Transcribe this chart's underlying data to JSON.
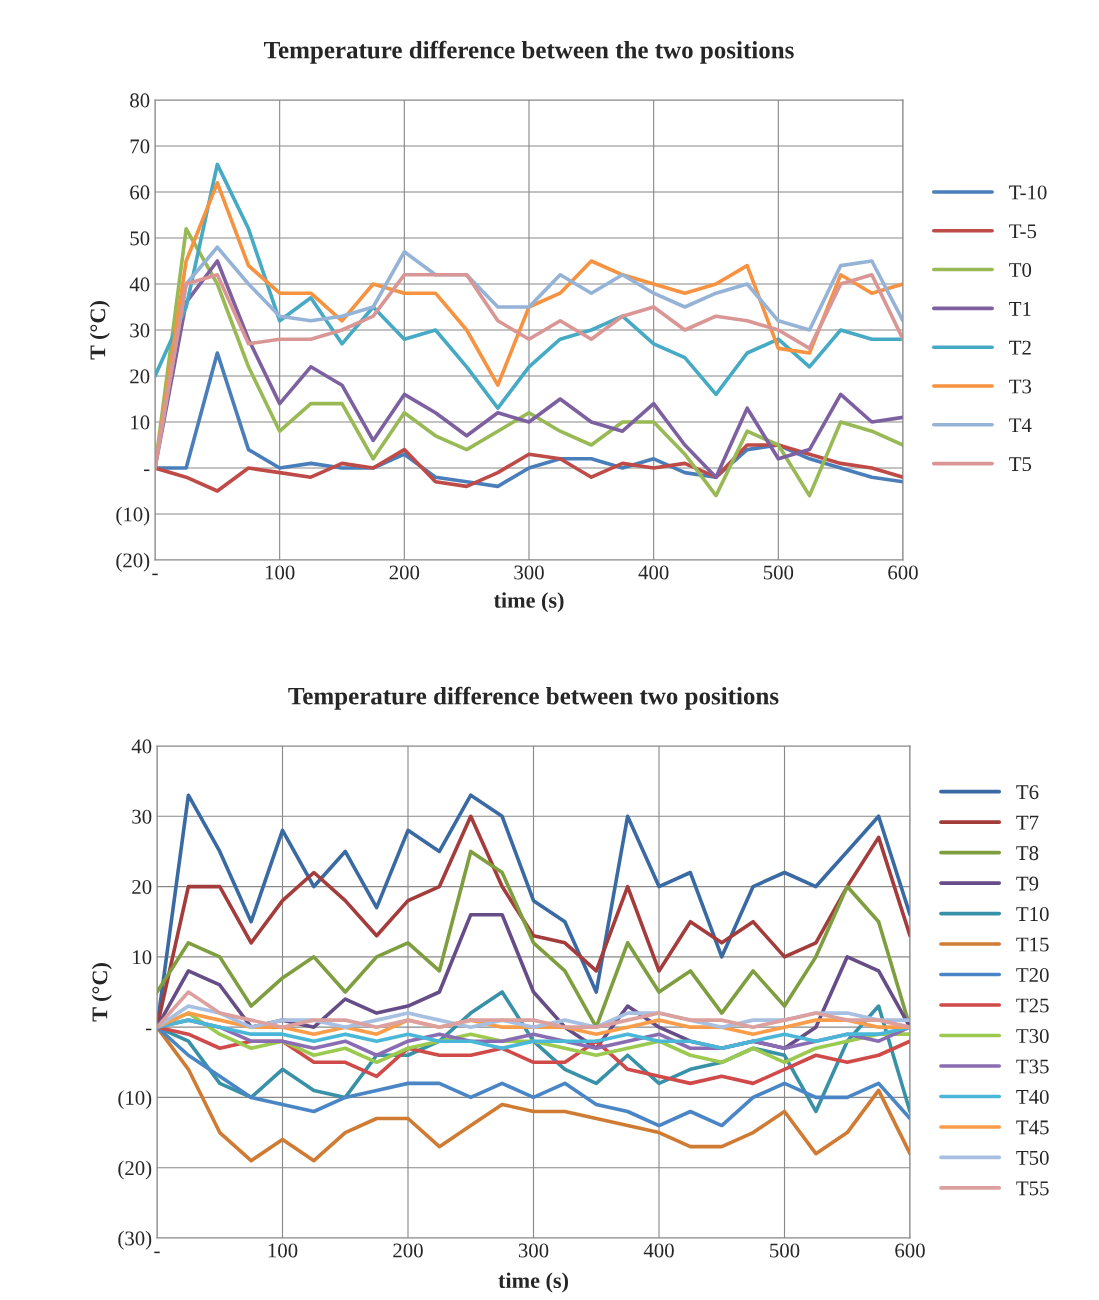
{
  "chart_data": [
    {
      "type": "line",
      "title": "Temperature difference between the two positions",
      "xlabel": "time (s)",
      "ylabel": "T (°C)",
      "x": [
        0,
        25,
        50,
        75,
        100,
        125,
        150,
        175,
        200,
        225,
        250,
        275,
        300,
        325,
        350,
        375,
        400,
        425,
        450,
        475,
        500,
        525,
        550,
        575,
        600
      ],
      "xlim": [
        0,
        600
      ],
      "xticks": [
        {
          "value": 0,
          "label": "-"
        },
        100,
        200,
        300,
        400,
        500,
        600
      ],
      "ylim": [
        -20,
        80
      ],
      "yticks": [
        {
          "value": -20,
          "label": "(20)"
        },
        {
          "value": -10,
          "label": "(10)"
        },
        {
          "value": 0,
          "label": "-"
        },
        10,
        20,
        30,
        40,
        50,
        60,
        70,
        80
      ],
      "grid": true,
      "legend": "right",
      "series": [
        {
          "name": "T-10",
          "color": "#4a7ebb",
          "values": [
            0,
            0,
            25,
            4,
            0,
            1,
            0,
            0,
            3,
            -2,
            -3,
            -4,
            0,
            2,
            2,
            0,
            2,
            -1,
            -2,
            4,
            5,
            2,
            0,
            -2,
            -3
          ]
        },
        {
          "name": "T-5",
          "color": "#be4b48",
          "values": [
            0,
            -2,
            -5,
            0,
            -1,
            -2,
            1,
            0,
            4,
            -3,
            -4,
            -1,
            3,
            2,
            -2,
            1,
            0,
            1,
            -2,
            5,
            5,
            3,
            1,
            0,
            -2
          ]
        },
        {
          "name": "T0",
          "color": "#98b954",
          "values": [
            0,
            52,
            40,
            22,
            8,
            14,
            14,
            2,
            12,
            7,
            4,
            8,
            12,
            8,
            5,
            10,
            10,
            3,
            -6,
            8,
            5,
            -6,
            10,
            8,
            5
          ]
        },
        {
          "name": "T1",
          "color": "#7d60a0",
          "values": [
            0,
            36,
            45,
            28,
            14,
            22,
            18,
            6,
            16,
            12,
            7,
            12,
            10,
            15,
            10,
            8,
            14,
            5,
            -2,
            13,
            2,
            4,
            16,
            10,
            11
          ]
        },
        {
          "name": "T2",
          "color": "#46aac5",
          "values": [
            20,
            35,
            66,
            52,
            32,
            37,
            27,
            35,
            28,
            30,
            22,
            13,
            22,
            28,
            30,
            33,
            27,
            24,
            16,
            25,
            28,
            22,
            30,
            28,
            28
          ]
        },
        {
          "name": "T3",
          "color": "#f69240",
          "values": [
            0,
            45,
            62,
            44,
            38,
            38,
            32,
            40,
            38,
            38,
            30,
            18,
            35,
            38,
            45,
            42,
            40,
            38,
            40,
            44,
            26,
            25,
            42,
            38,
            40
          ]
        },
        {
          "name": "T4",
          "color": "#95b3d7",
          "values": [
            0,
            40,
            48,
            40,
            33,
            32,
            33,
            35,
            47,
            42,
            42,
            35,
            35,
            42,
            38,
            42,
            38,
            35,
            38,
            40,
            32,
            30,
            44,
            45,
            32
          ]
        },
        {
          "name": "T5",
          "color": "#d99694",
          "values": [
            0,
            40,
            42,
            27,
            28,
            28,
            30,
            33,
            42,
            42,
            42,
            32,
            28,
            32,
            28,
            33,
            35,
            30,
            33,
            32,
            30,
            26,
            40,
            42,
            28
          ]
        }
      ]
    },
    {
      "type": "line",
      "title": "Temperature difference between two positions",
      "xlabel": "time (s)",
      "ylabel": "T (°C)",
      "x": [
        0,
        25,
        50,
        75,
        100,
        125,
        150,
        175,
        200,
        225,
        250,
        275,
        300,
        325,
        350,
        375,
        400,
        425,
        450,
        475,
        500,
        525,
        550,
        575,
        600
      ],
      "xlim": [
        0,
        600
      ],
      "xticks": [
        {
          "value": 0,
          "label": "-"
        },
        100,
        200,
        300,
        400,
        500,
        600
      ],
      "ylim": [
        -30,
        40
      ],
      "yticks": [
        {
          "value": -30,
          "label": "(30)"
        },
        {
          "value": -20,
          "label": "(20)"
        },
        {
          "value": -10,
          "label": "(10)"
        },
        {
          "value": 0,
          "label": "-"
        },
        10,
        20,
        30,
        40
      ],
      "grid": true,
      "legend": "right",
      "series": [
        {
          "name": "T6",
          "color": "#3a6aa3",
          "values": [
            0,
            33,
            25,
            15,
            28,
            20,
            25,
            17,
            28,
            25,
            33,
            30,
            18,
            15,
            5,
            30,
            20,
            22,
            10,
            20,
            22,
            20,
            25,
            30,
            16
          ]
        },
        {
          "name": "T7",
          "color": "#a33c3a",
          "values": [
            0,
            20,
            20,
            12,
            18,
            22,
            18,
            13,
            18,
            20,
            30,
            20,
            13,
            12,
            8,
            20,
            8,
            15,
            12,
            15,
            10,
            12,
            20,
            27,
            13
          ]
        },
        {
          "name": "T8",
          "color": "#7f9e40",
          "values": [
            5,
            12,
            10,
            3,
            7,
            10,
            5,
            10,
            12,
            8,
            25,
            22,
            12,
            8,
            0,
            12,
            5,
            8,
            2,
            8,
            3,
            10,
            20,
            15,
            0
          ]
        },
        {
          "name": "T9",
          "color": "#664d87",
          "values": [
            0,
            8,
            6,
            0,
            1,
            0,
            4,
            2,
            3,
            5,
            16,
            16,
            5,
            0,
            -3,
            3,
            0,
            -2,
            -3,
            -2,
            -3,
            0,
            10,
            8,
            0
          ]
        },
        {
          "name": "T10",
          "color": "#3891a7",
          "values": [
            0,
            -2,
            -8,
            -10,
            -6,
            -9,
            -10,
            -4,
            -4,
            -2,
            2,
            5,
            -2,
            -6,
            -8,
            -4,
            -8,
            -6,
            -5,
            -3,
            -4,
            -12,
            -2,
            3,
            -12
          ]
        },
        {
          "name": "T15",
          "color": "#d07b33",
          "values": [
            0,
            -6,
            -15,
            -19,
            -16,
            -19,
            -15,
            -13,
            -13,
            -17,
            -14,
            -11,
            -12,
            -12,
            -13,
            -14,
            -15,
            -17,
            -17,
            -15,
            -12,
            -18,
            -15,
            -9,
            -18
          ]
        },
        {
          "name": "T20",
          "color": "#4a86c5",
          "values": [
            0,
            -4,
            -7,
            -10,
            -11,
            -12,
            -10,
            -9,
            -8,
            -8,
            -10,
            -8,
            -10,
            -8,
            -11,
            -12,
            -14,
            -12,
            -14,
            -10,
            -8,
            -10,
            -10,
            -8,
            -13
          ]
        },
        {
          "name": "T25",
          "color": "#cf4a48",
          "values": [
            0,
            -1,
            -3,
            -2,
            -2,
            -5,
            -5,
            -7,
            -3,
            -4,
            -4,
            -3,
            -5,
            -5,
            -2,
            -6,
            -7,
            -8,
            -7,
            -8,
            -6,
            -4,
            -5,
            -4,
            -2
          ]
        },
        {
          "name": "T30",
          "color": "#9cc94f",
          "values": [
            0,
            2,
            -1,
            -3,
            -2,
            -4,
            -3,
            -5,
            -3,
            -2,
            -1,
            -2,
            -2,
            -3,
            -4,
            -3,
            -2,
            -4,
            -5,
            -3,
            -5,
            -3,
            -2,
            -1,
            -1
          ]
        },
        {
          "name": "T35",
          "color": "#8a6cb3",
          "values": [
            0,
            1,
            0,
            -2,
            -2,
            -3,
            -2,
            -4,
            -2,
            -1,
            -2,
            -2,
            -1,
            -2,
            -3,
            -2,
            -1,
            -3,
            -3,
            -2,
            -3,
            -2,
            -1,
            -2,
            0
          ]
        },
        {
          "name": "T40",
          "color": "#4bb7d8",
          "values": [
            0,
            1,
            0,
            -1,
            -1,
            -2,
            -1,
            -2,
            -1,
            -2,
            -2,
            -3,
            -2,
            -2,
            -2,
            -1,
            -2,
            -2,
            -3,
            -2,
            -1,
            -2,
            -1,
            -1,
            0
          ]
        },
        {
          "name": "T45",
          "color": "#fa9d4b",
          "values": [
            0,
            2,
            1,
            0,
            0,
            -1,
            0,
            -1,
            1,
            0,
            1,
            0,
            0,
            0,
            -1,
            0,
            1,
            0,
            0,
            -1,
            0,
            1,
            1,
            0,
            0
          ]
        },
        {
          "name": "T50",
          "color": "#a7bfe0",
          "values": [
            0,
            3,
            2,
            0,
            1,
            1,
            0,
            1,
            2,
            1,
            0,
            1,
            0,
            1,
            0,
            2,
            2,
            1,
            0,
            1,
            1,
            2,
            2,
            1,
            1
          ]
        },
        {
          "name": "T55",
          "color": "#dca19f",
          "values": [
            0,
            5,
            2,
            1,
            0,
            1,
            1,
            0,
            1,
            0,
            1,
            1,
            1,
            0,
            0,
            1,
            2,
            1,
            1,
            0,
            1,
            2,
            1,
            1,
            0
          ]
        }
      ]
    }
  ]
}
